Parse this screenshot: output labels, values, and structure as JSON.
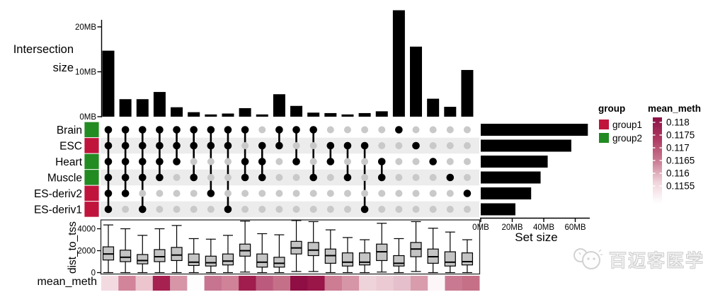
{
  "labels": {
    "intersection_line1": "Intersection",
    "intersection_line2": "size",
    "set_size": "Set size",
    "dist_to_tss": "dist_to_tss",
    "mean_meth": "mean_meth"
  },
  "colors": {
    "bar": "#000000",
    "stripe": "#ECECEC",
    "dot_empty": "#C9C9C9",
    "dot_filled": "#000000",
    "box_fill": "#C4C4C4",
    "axis": "#000000"
  },
  "sets": [
    {
      "name": "Brain",
      "group": "group2",
      "size_mb": 68
    },
    {
      "name": "ESC",
      "group": "group1",
      "size_mb": 57.5
    },
    {
      "name": "Heart",
      "group": "group2",
      "size_mb": 42.5
    },
    {
      "name": "Muscle",
      "group": "group2",
      "size_mb": 38
    },
    {
      "name": "ES-deriv2",
      "group": "group1",
      "size_mb": 32
    },
    {
      "name": "ES-deriv1",
      "group": "group1",
      "size_mb": 22
    }
  ],
  "legends": {
    "group": {
      "title": "group",
      "items": [
        {
          "label": "group1",
          "color": "#C0143C"
        },
        {
          "label": "group2",
          "color": "#228B22"
        }
      ]
    },
    "mean_meth": {
      "title": "mean_meth",
      "tick_labels": [
        "0.118",
        "0.1175",
        "0.117",
        "0.1165",
        "0.116",
        "0.1155"
      ],
      "gradient": [
        "#8B1044",
        "#AE3A62",
        "#C97A92",
        "#EFD3DA",
        "#FFFFFF"
      ]
    }
  },
  "watermark": {
    "text": "百迈客医学"
  },
  "chart_data": [
    {
      "id": "intersection_size",
      "type": "bar",
      "ylabel": "Intersection size",
      "ylim": [
        0,
        24.5
      ],
      "yticks": [
        {
          "label": "0MB",
          "mb": 0
        },
        {
          "label": "10MB",
          "mb": 10
        },
        {
          "label": "20MB",
          "mb": 20
        }
      ],
      "values_mb": [
        14.7,
        3.9,
        3.9,
        5.5,
        2.1,
        1.0,
        0.5,
        0.7,
        1.9,
        0.5,
        5.0,
        2.4,
        0.9,
        0.8,
        0.5,
        0.8,
        1.2,
        23.7,
        15.6,
        4.0,
        2.2,
        10.4
      ]
    },
    {
      "id": "upset_matrix",
      "type": "table",
      "rows": [
        "Brain",
        "ESC",
        "Heart",
        "Muscle",
        "ES-deriv2",
        "ES-deriv1"
      ],
      "memberships": [
        [
          "Brain",
          "ESC",
          "Heart",
          "Muscle",
          "ES-deriv2",
          "ES-deriv1"
        ],
        [
          "Brain",
          "ESC",
          "Heart",
          "Muscle",
          "ES-deriv2"
        ],
        [
          "Brain",
          "ESC",
          "Heart",
          "Muscle",
          "ES-deriv1"
        ],
        [
          "Brain",
          "ESC",
          "Heart",
          "Muscle"
        ],
        [
          "Brain",
          "ESC",
          "Heart"
        ],
        [
          "Brain",
          "ESC",
          "Muscle"
        ],
        [
          "Brain",
          "ESC",
          "ES-deriv2"
        ],
        [
          "Brain",
          "ESC",
          "ES-deriv1"
        ],
        [
          "Brain",
          "Heart",
          "Muscle"
        ],
        [
          "ESC",
          "Heart",
          "Muscle"
        ],
        [
          "Brain",
          "ESC"
        ],
        [
          "Brain",
          "Heart"
        ],
        [
          "Brain",
          "Muscle"
        ],
        [
          "ESC",
          "Heart"
        ],
        [
          "ESC",
          "Muscle"
        ],
        [
          "ESC",
          "ES-deriv1"
        ],
        [
          "Heart",
          "Muscle"
        ],
        [
          "Brain"
        ],
        [
          "ESC"
        ],
        [
          "Heart"
        ],
        [
          "Muscle"
        ],
        [
          "ES-deriv2"
        ]
      ]
    },
    {
      "id": "set_size",
      "type": "bar",
      "xlabel": "Set size",
      "xlim": [
        0,
        70
      ],
      "xticks": [
        {
          "label": "0MB",
          "mb": 0
        },
        {
          "label": "20MB",
          "mb": 20
        },
        {
          "label": "40MB",
          "mb": 40
        },
        {
          "label": "60MB",
          "mb": 60
        }
      ],
      "values_mb": [
        68,
        57.5,
        42.5,
        38,
        32,
        22
      ]
    },
    {
      "id": "dist_to_tss",
      "type": "boxplot",
      "ylabel": "dist_to_tss",
      "ylim": [
        0,
        4800
      ],
      "yticks": [
        {
          "label": "0",
          "v": 0
        },
        {
          "label": "2000",
          "v": 2000
        },
        {
          "label": "4000",
          "v": 4000
        }
      ],
      "boxes": [
        {
          "low": 0,
          "q1": 1150,
          "med": 1700,
          "q3": 2350,
          "high": 4350
        },
        {
          "low": 0,
          "q1": 1000,
          "med": 1400,
          "q3": 2050,
          "high": 4000
        },
        {
          "low": 0,
          "q1": 800,
          "med": 1100,
          "q3": 1650,
          "high": 3400
        },
        {
          "low": 0,
          "q1": 1000,
          "med": 1450,
          "q3": 2100,
          "high": 4000
        },
        {
          "low": 0,
          "q1": 1100,
          "med": 1600,
          "q3": 2300,
          "high": 4300
        },
        {
          "low": 0,
          "q1": 650,
          "med": 950,
          "q3": 1700,
          "high": 3100
        },
        {
          "low": 0,
          "q1": 600,
          "med": 900,
          "q3": 1500,
          "high": 3050
        },
        {
          "low": 0,
          "q1": 700,
          "med": 1050,
          "q3": 1700,
          "high": 3400
        },
        {
          "low": 50,
          "q1": 1500,
          "med": 2000,
          "q3": 2600,
          "high": 4700
        },
        {
          "low": 0,
          "q1": 500,
          "med": 950,
          "q3": 1700,
          "high": 3550
        },
        {
          "low": 0,
          "q1": 500,
          "med": 850,
          "q3": 1400,
          "high": 3450
        },
        {
          "low": 100,
          "q1": 1700,
          "med": 2250,
          "q3": 2850,
          "high": 4750
        },
        {
          "low": 100,
          "q1": 1550,
          "med": 2050,
          "q3": 2750,
          "high": 4650
        },
        {
          "low": 0,
          "q1": 850,
          "med": 1550,
          "q3": 2150,
          "high": 3900
        },
        {
          "low": 0,
          "q1": 600,
          "med": 950,
          "q3": 1800,
          "high": 3200
        },
        {
          "low": 0,
          "q1": 700,
          "med": 950,
          "q3": 1800,
          "high": 3000
        },
        {
          "low": 50,
          "q1": 1100,
          "med": 1900,
          "q3": 2600,
          "high": 4500
        },
        {
          "low": 0,
          "q1": 600,
          "med": 850,
          "q3": 1550,
          "high": 3100
        },
        {
          "low": 100,
          "q1": 1450,
          "med": 2150,
          "q3": 2750,
          "high": 4650
        },
        {
          "low": 0,
          "q1": 850,
          "med": 1450,
          "q3": 2150,
          "high": 4050
        },
        {
          "low": 0,
          "q1": 600,
          "med": 950,
          "q3": 1900,
          "high": 3700
        },
        {
          "low": 0,
          "q1": 700,
          "med": 1000,
          "q3": 1800,
          "high": 3000
        }
      ]
    },
    {
      "id": "mean_meth",
      "type": "heatmap",
      "label": "mean_meth",
      "cell_colors": [
        "#F3DAE1",
        "#D2849B",
        "#ECC5CF",
        "#A62050",
        "#D795A8",
        "#FEFDFD",
        "#C77490",
        "#CF8298",
        "#A01D4D",
        "#BB5A7D",
        "#C47089",
        "#8F0E44",
        "#9A1548",
        "#CC7C93",
        "#D795A8",
        "#EFD3DA",
        "#EBCAD3",
        "#E5BFCB",
        "#D89CAD",
        "#FDF6F8",
        "#C97A92",
        "#C57087"
      ]
    }
  ]
}
